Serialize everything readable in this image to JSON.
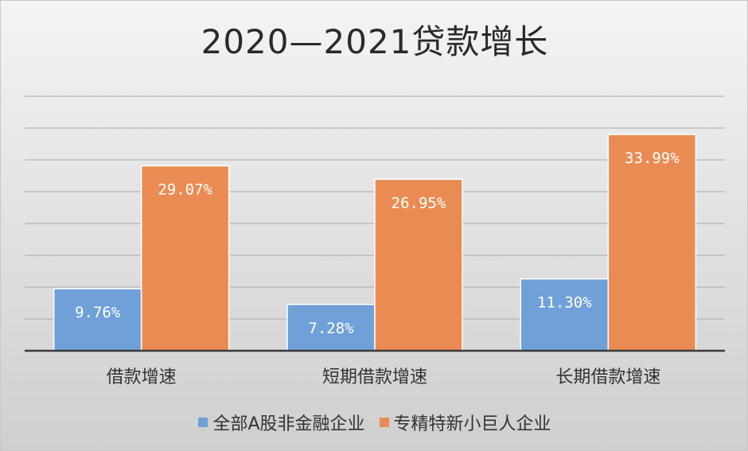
{
  "chart_data": {
    "type": "bar",
    "title": "2020—2021贷款增长",
    "categories": [
      "借款增速",
      "短期借款增速",
      "长期借款增速"
    ],
    "series": [
      {
        "name": "全部A股非金融企业",
        "color": "#6fa0d8",
        "values": [
          9.76,
          7.28,
          11.3
        ],
        "labels": [
          "9.76%",
          "7.28%",
          "11.30%"
        ]
      },
      {
        "name": "专精特新小巨人企业",
        "color": "#ea8b53",
        "values": [
          29.07,
          26.95,
          33.99
        ],
        "labels": [
          "29.07%",
          "26.95%",
          "33.99%"
        ]
      }
    ],
    "ylim": [
      0,
      40
    ],
    "grid": true,
    "legend_position": "bottom"
  }
}
